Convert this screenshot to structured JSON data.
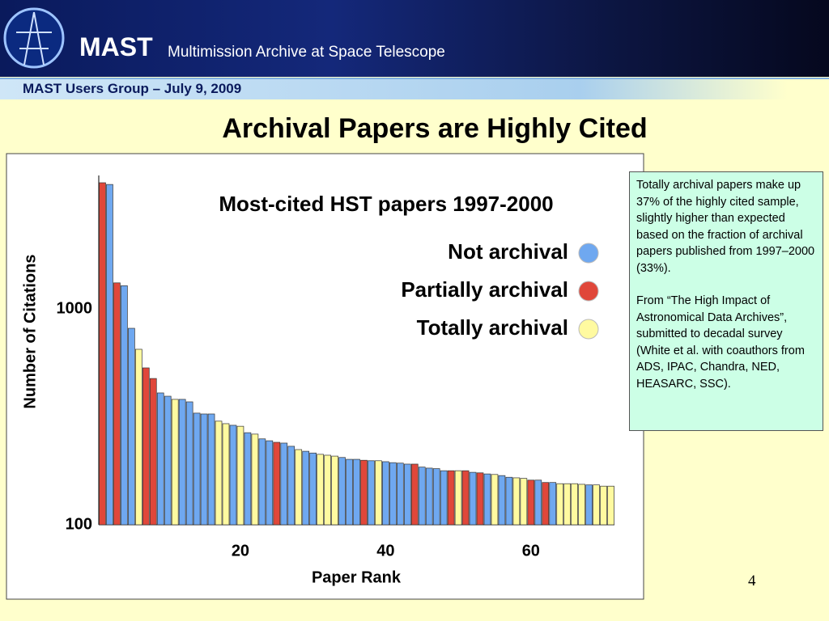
{
  "header": {
    "logo_text": "MAST",
    "subtitle": "Multimission Archive at Space Telescope",
    "meeting": "MAST Users Group – July 9, 2009"
  },
  "slide": {
    "title": "Archival Papers are Highly Cited",
    "notes": [
      "Totally archival papers make up 37% of the highly cited sample, slightly higher than expected based on the fraction of archival papers published from 1997–2000 (33%).",
      "From “The High Impact of Astronomical Data Archives”, submitted to decadal survey (White et al. with coauthors from ADS, IPAC, Chandra, NED, HEASARC, SSC)."
    ],
    "page_number": 4
  },
  "chart_data": {
    "type": "bar",
    "title": "Most-cited HST papers 1997-2000",
    "xlabel": "Paper Rank",
    "ylabel": "Number of Citations",
    "log_y": true,
    "legend": "upper right",
    "x": [
      1,
      2,
      3,
      4,
      5,
      6,
      7,
      8,
      9,
      10,
      11,
      12,
      13,
      14,
      15,
      16,
      17,
      18,
      19,
      20,
      21,
      22,
      23,
      24,
      25,
      26,
      27,
      28,
      29,
      30,
      31,
      32,
      33,
      34,
      35,
      36,
      37,
      38,
      39,
      40,
      41,
      42,
      43,
      44,
      45,
      46,
      47,
      48,
      49,
      50,
      51,
      52,
      53,
      54,
      55,
      56,
      57,
      58,
      59,
      60,
      61,
      62,
      63,
      64,
      65,
      66,
      67,
      68,
      69,
      70,
      71
    ],
    "xlim": [
      0.5,
      71.5
    ],
    "xticks": [
      20,
      40,
      60
    ],
    "ylim": [
      100,
      4150
    ],
    "yticks": [
      100,
      1000
    ],
    "series": [
      {
        "name": "Not archival",
        "color": "#6fa8f0",
        "values": [
          null,
          3770,
          null,
          1280,
          813,
          null,
          null,
          null,
          408,
          394,
          null,
          381,
          371,
          329,
          326,
          326,
          null,
          null,
          289,
          null,
          267,
          null,
          250,
          245,
          null,
          239,
          231,
          null,
          219,
          215,
          null,
          null,
          null,
          205,
          201,
          201,
          null,
          198,
          null,
          196,
          194,
          193,
          191,
          null,
          185,
          183,
          182,
          178,
          null,
          null,
          null,
          175,
          null,
          172,
          null,
          169,
          166,
          null,
          null,
          null,
          161,
          null,
          157,
          null,
          null,
          null,
          null,
          153,
          null,
          null,
          null
        ]
      },
      {
        "name": "Partially archival",
        "color": "#e0473a",
        "values": [
          3840,
          null,
          1320,
          null,
          null,
          null,
          533,
          476,
          null,
          null,
          null,
          null,
          null,
          null,
          null,
          null,
          null,
          null,
          null,
          null,
          null,
          null,
          null,
          null,
          241,
          null,
          null,
          null,
          null,
          null,
          null,
          null,
          null,
          null,
          null,
          null,
          199,
          null,
          null,
          null,
          null,
          null,
          null,
          191,
          null,
          null,
          null,
          null,
          178,
          null,
          178,
          null,
          174,
          null,
          null,
          null,
          null,
          null,
          null,
          161,
          null,
          157,
          null,
          null,
          null,
          null,
          null,
          null,
          null,
          null,
          null
        ]
      },
      {
        "name": "Totally archival",
        "color": "#fffaa0",
        "values": [
          null,
          null,
          null,
          null,
          null,
          650,
          null,
          null,
          null,
          null,
          381,
          null,
          null,
          null,
          null,
          null,
          302,
          294,
          null,
          286,
          null,
          263,
          null,
          null,
          null,
          null,
          null,
          223,
          null,
          null,
          212,
          210,
          208,
          null,
          null,
          null,
          null,
          null,
          198,
          null,
          null,
          null,
          null,
          null,
          null,
          null,
          null,
          null,
          null,
          178,
          null,
          null,
          null,
          null,
          171,
          null,
          null,
          165,
          164,
          null,
          null,
          null,
          null,
          155,
          155,
          155,
          154,
          null,
          153,
          151,
          151
        ]
      }
    ]
  }
}
